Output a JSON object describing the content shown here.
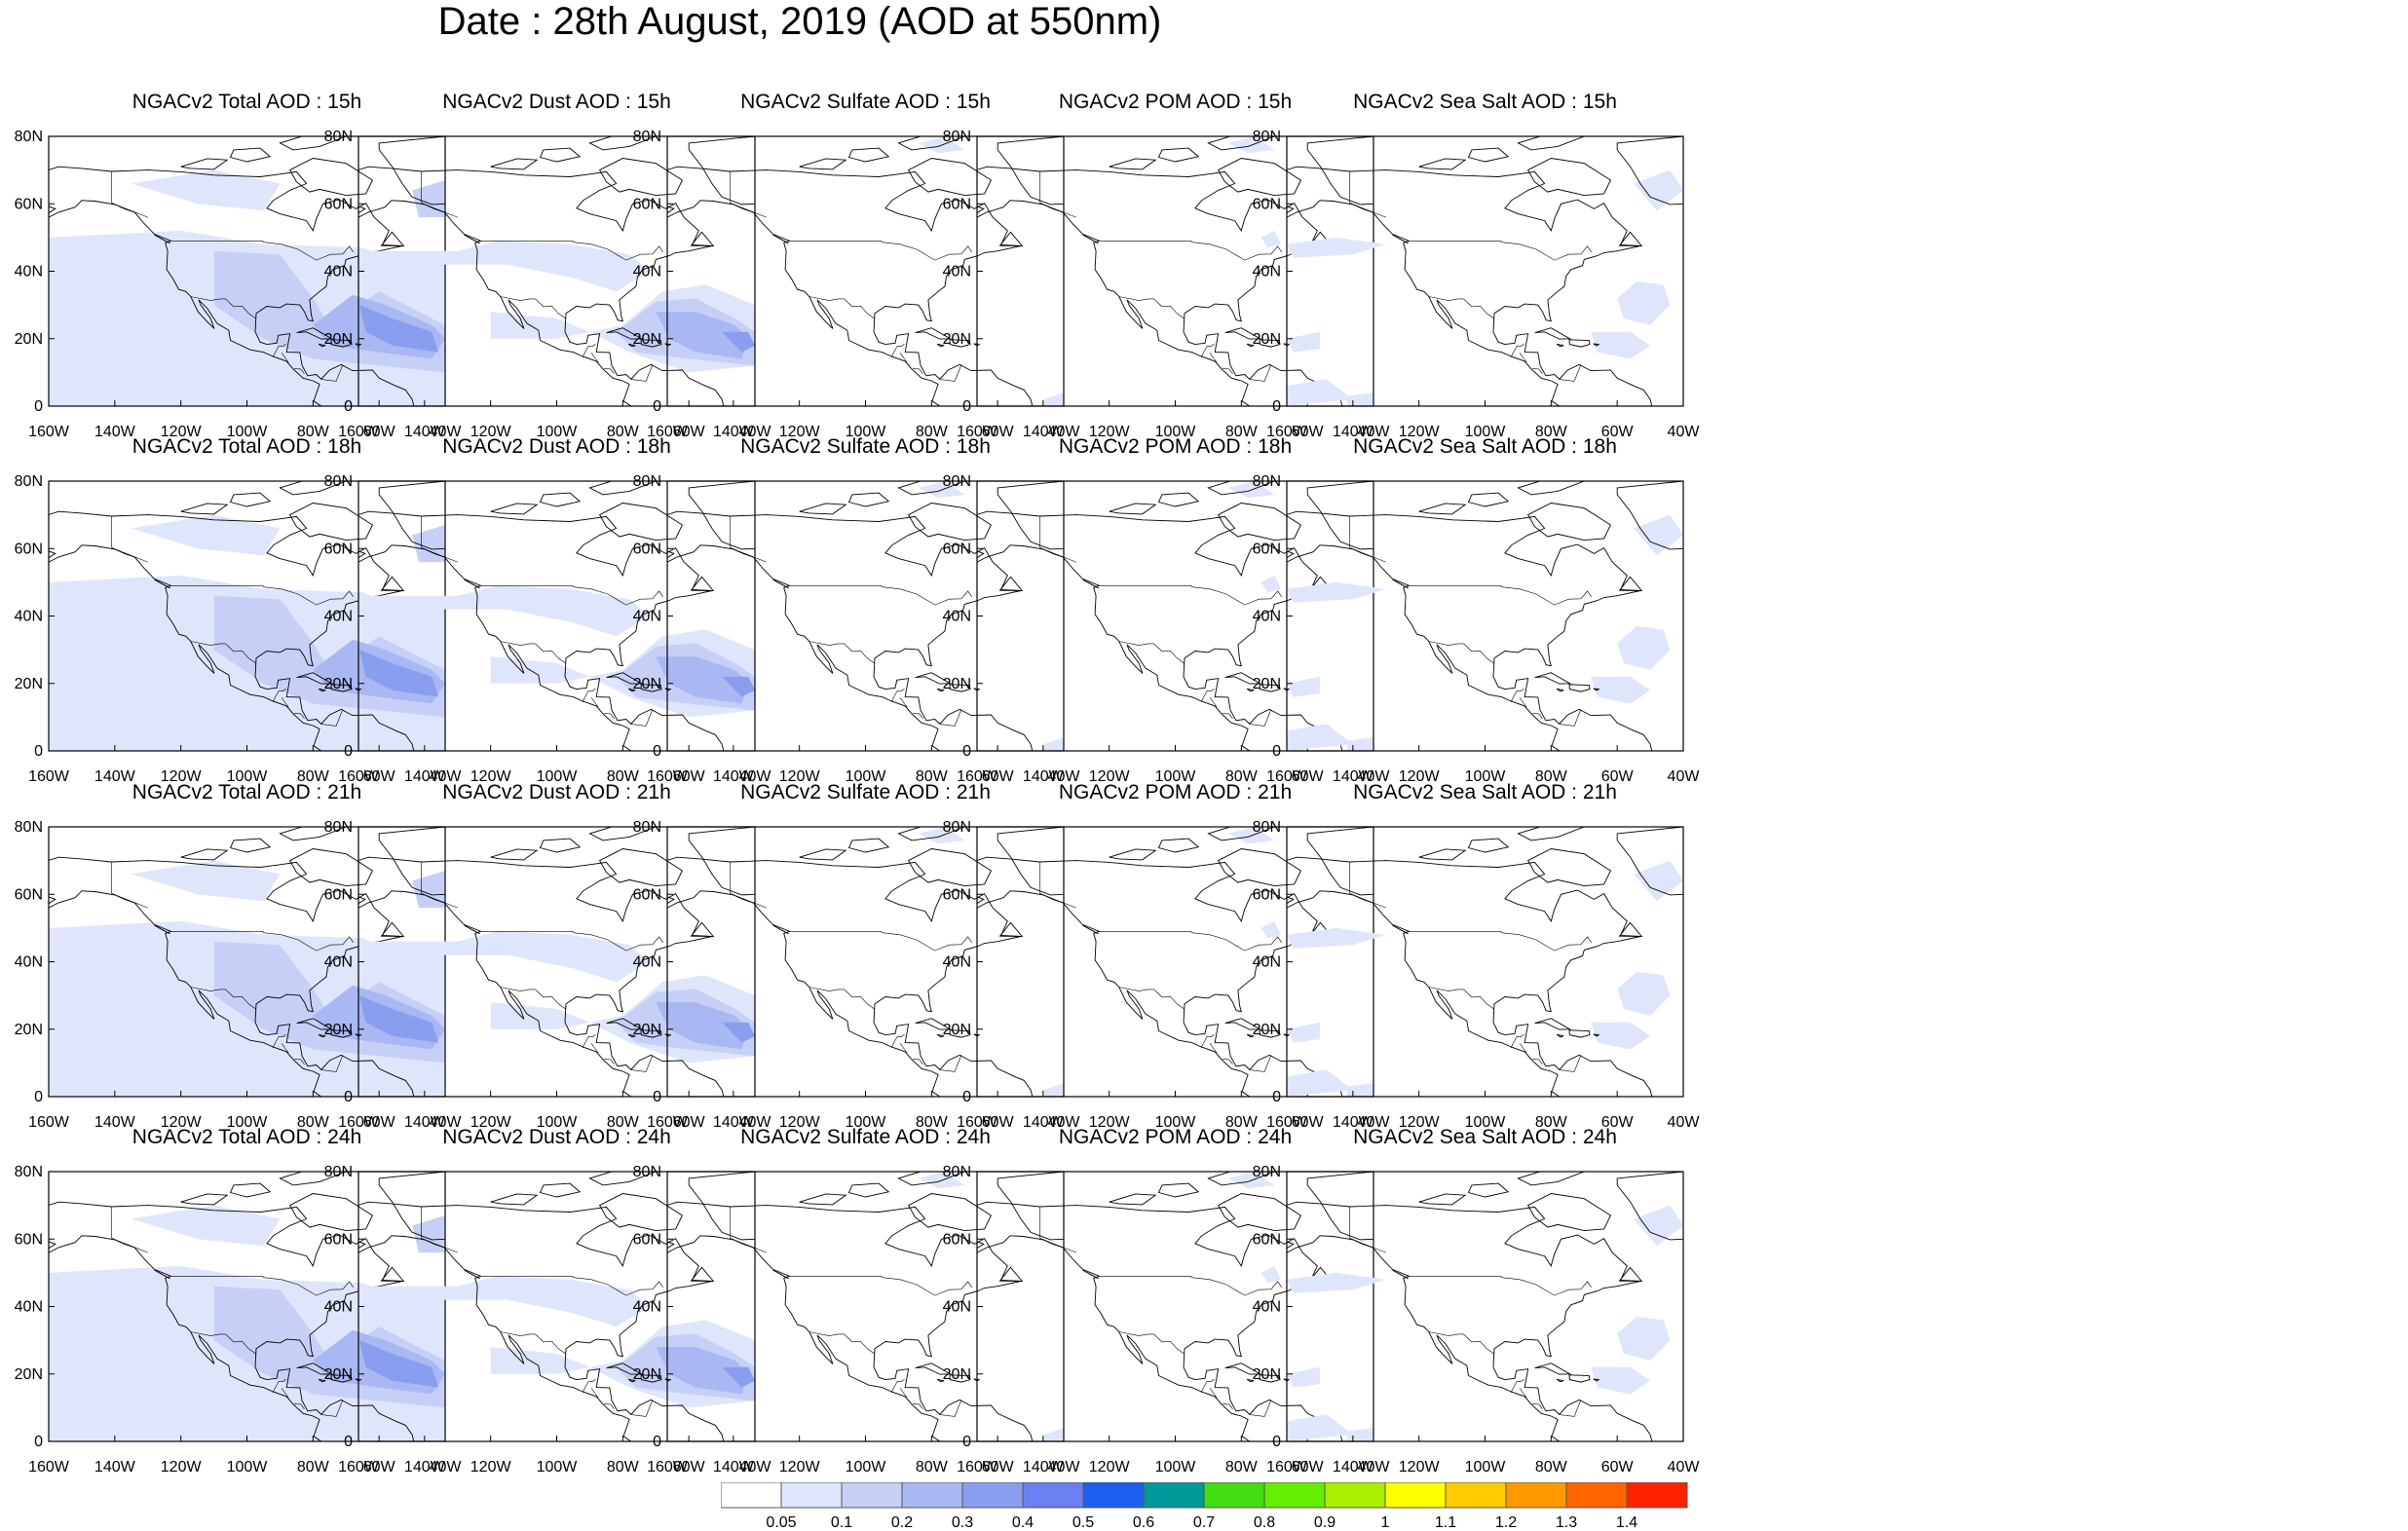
{
  "header": {
    "title": "Date : 28th August, 2019 (AOD at 550nm)"
  },
  "map_axes": {
    "lat_labels": [
      "80N",
      "60N",
      "40N",
      "20N",
      "0"
    ],
    "lon_labels": [
      "160W",
      "140W",
      "120W",
      "100W",
      "80W",
      "60W",
      "40W"
    ],
    "lon_range": [
      -160,
      -40
    ],
    "lat_range": [
      0,
      80
    ]
  },
  "panels": [
    [
      {
        "title": "NGACv2 Total AOD : 15h",
        "kind": "total"
      },
      {
        "title": "NGACv2 Dust AOD : 15h",
        "kind": "dust"
      },
      {
        "title": "NGACv2 Sulfate AOD : 15h",
        "kind": "sulfate"
      },
      {
        "title": "NGACv2 POM AOD : 15h",
        "kind": "pom"
      },
      {
        "title": "NGACv2 Sea Salt AOD : 15h",
        "kind": "seasalt"
      }
    ],
    [
      {
        "title": "NGACv2 Total AOD : 18h",
        "kind": "total"
      },
      {
        "title": "NGACv2 Dust AOD : 18h",
        "kind": "dust"
      },
      {
        "title": "NGACv2 Sulfate AOD : 18h",
        "kind": "sulfate"
      },
      {
        "title": "NGACv2 POM AOD : 18h",
        "kind": "pom"
      },
      {
        "title": "NGACv2 Sea Salt AOD : 18h",
        "kind": "seasalt"
      }
    ],
    [
      {
        "title": "NGACv2 Total AOD : 21h",
        "kind": "total"
      },
      {
        "title": "NGACv2 Dust AOD : 21h",
        "kind": "dust"
      },
      {
        "title": "NGACv2 Sulfate AOD : 21h",
        "kind": "sulfate"
      },
      {
        "title": "NGACv2 POM AOD : 21h",
        "kind": "pom"
      },
      {
        "title": "NGACv2 Sea Salt AOD : 21h",
        "kind": "seasalt"
      }
    ],
    [
      {
        "title": "NGACv2 Total AOD : 24h",
        "kind": "total"
      },
      {
        "title": "NGACv2 Dust AOD : 24h",
        "kind": "dust"
      },
      {
        "title": "NGACv2 Sulfate AOD : 24h",
        "kind": "sulfate"
      },
      {
        "title": "NGACv2 POM AOD : 24h",
        "kind": "pom"
      },
      {
        "title": "NGACv2 Sea Salt  AOD : 24h",
        "kind": "seasalt"
      }
    ]
  ],
  "colorbar": {
    "labels": [
      "0.05",
      "0.1",
      "0.2",
      "0.3",
      "0.4",
      "0.5",
      "0.6",
      "0.7",
      "0.8",
      "0.9",
      "1",
      "1.1",
      "1.2",
      "1.3",
      "1.4"
    ],
    "colors": [
      "#ffffff",
      "#dfe5fb",
      "#c6d0f7",
      "#a9b8f3",
      "#8a9ef0",
      "#6c7ff0",
      "#1f5ff0",
      "#00999a",
      "#44dd11",
      "#66ee00",
      "#aaee00",
      "#ffff00",
      "#ffcc00",
      "#ff9900",
      "#ff6600",
      "#ff2200"
    ]
  },
  "colors": {
    "aod_light": "#dfe5fb",
    "aod_mid": "#c6d0f7",
    "aod_high": "#a9b8f3",
    "aod_peak": "#8a9ef0",
    "coastline": "#000000"
  }
}
